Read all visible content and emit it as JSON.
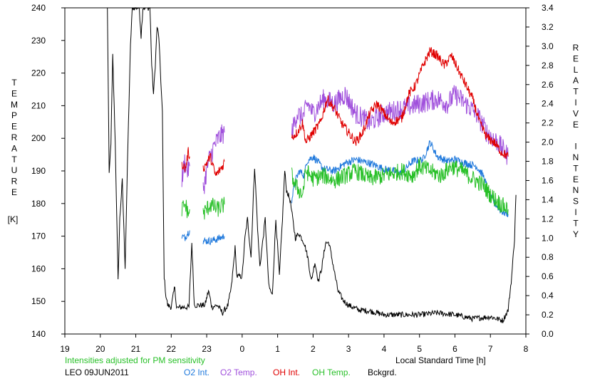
{
  "chart_data": {
    "type": "line",
    "left_axis": {
      "label_letters": [
        "T",
        "E",
        "M",
        "P",
        "E",
        "R",
        "A",
        "T",
        "U",
        "R",
        "E"
      ],
      "unit": "[K]",
      "ticks": [
        140,
        150,
        160,
        170,
        180,
        190,
        200,
        210,
        220,
        230,
        240
      ],
      "ylim": [
        140,
        240
      ]
    },
    "right_axis": {
      "label_letters": [
        "R",
        "E",
        "L",
        "A",
        "T",
        "I",
        "V",
        "E",
        "",
        "I",
        "N",
        "T",
        "E",
        "N",
        "S",
        "I",
        "T",
        "Y"
      ],
      "ticks": [
        "0.0",
        "0.2",
        "0.4",
        "0.6",
        "0.8",
        "1.0",
        "1.2",
        "1.4",
        "1.6",
        "1.8",
        "2.0",
        "2.2",
        "2.4",
        "2.6",
        "2.8",
        "3.0",
        "3.2",
        "3.4"
      ],
      "ylim": [
        0.0,
        3.4
      ]
    },
    "x_axis": {
      "ticks": [
        {
          "x": 19,
          "label": "19"
        },
        {
          "x": 20,
          "label": "20"
        },
        {
          "x": 21,
          "label": "21"
        },
        {
          "x": 22,
          "label": "22"
        },
        {
          "x": 23,
          "label": "23"
        },
        {
          "x": 24,
          "label": "0"
        },
        {
          "x": 25,
          "label": "1"
        },
        {
          "x": 26,
          "label": "2"
        },
        {
          "x": 27,
          "label": "3"
        },
        {
          "x": 28,
          "label": "4"
        },
        {
          "x": 29,
          "label": "5"
        },
        {
          "x": 30,
          "label": "6"
        },
        {
          "x": 31,
          "label": "7"
        },
        {
          "x": 32,
          "label": "8"
        }
      ],
      "xlim": [
        19,
        32
      ],
      "label": "Local Standard Time [h]"
    },
    "note": "Intensities adjusted for PM sensitivity",
    "site": "LEO 09JUN2011",
    "legend": [
      {
        "name": "O2 Int.",
        "color": "#1e78dc"
      },
      {
        "name": "O2 Temp.",
        "color": "#a050dc"
      },
      {
        "name": "OH Int.",
        "color": "#e00000"
      },
      {
        "name": "OH Temp.",
        "color": "#28c028"
      },
      {
        "name": "Bckgrd.",
        "color": "#000000"
      }
    ],
    "series": [
      {
        "name": "Bckgrd.",
        "color": "#000000",
        "axis": "right",
        "noise": 0.03,
        "points": [
          [
            20.2,
            3.4
          ],
          [
            20.25,
            1.65
          ],
          [
            20.3,
            2.0
          ],
          [
            20.35,
            2.9
          ],
          [
            20.42,
            2.0
          ],
          [
            20.5,
            0.55
          ],
          [
            20.55,
            1.2
          ],
          [
            20.62,
            1.6
          ],
          [
            20.7,
            0.7
          ],
          [
            20.78,
            2.0
          ],
          [
            20.85,
            3.0
          ],
          [
            20.9,
            3.4
          ],
          [
            21.1,
            3.4
          ],
          [
            21.15,
            3.1
          ],
          [
            21.2,
            3.4
          ],
          [
            21.4,
            3.4
          ],
          [
            21.45,
            2.8
          ],
          [
            21.5,
            2.5
          ],
          [
            21.55,
            2.8
          ],
          [
            21.6,
            3.2
          ],
          [
            21.65,
            3.1
          ],
          [
            21.75,
            2.3
          ],
          [
            21.8,
            0.6
          ],
          [
            21.85,
            0.4
          ],
          [
            21.9,
            0.3
          ],
          [
            22.0,
            0.28
          ],
          [
            22.1,
            0.5
          ],
          [
            22.15,
            0.27
          ],
          [
            22.3,
            0.28
          ],
          [
            22.5,
            0.28
          ],
          [
            22.58,
            0.95
          ],
          [
            22.65,
            0.3
          ],
          [
            22.8,
            0.3
          ],
          [
            22.95,
            0.3
          ],
          [
            23.05,
            0.45
          ],
          [
            23.15,
            0.28
          ],
          [
            23.3,
            0.3
          ],
          [
            23.45,
            0.22
          ],
          [
            23.6,
            0.3
          ],
          [
            23.7,
            0.5
          ],
          [
            23.8,
            0.9
          ],
          [
            23.85,
            0.6
          ],
          [
            24.0,
            0.6
          ],
          [
            24.08,
            1.0
          ],
          [
            24.15,
            1.2
          ],
          [
            24.25,
            0.8
          ],
          [
            24.35,
            1.75
          ],
          [
            24.45,
            1.0
          ],
          [
            24.5,
            0.7
          ],
          [
            24.65,
            1.2
          ],
          [
            24.75,
            0.5
          ],
          [
            24.85,
            0.4
          ],
          [
            24.95,
            1.2
          ],
          [
            25.05,
            0.6
          ],
          [
            25.15,
            1.3
          ],
          [
            25.2,
            1.7
          ],
          [
            25.25,
            1.5
          ],
          [
            25.35,
            1.4
          ],
          [
            25.5,
            1.0
          ],
          [
            25.6,
            1.05
          ],
          [
            25.75,
            0.95
          ],
          [
            25.85,
            0.8
          ],
          [
            25.95,
            0.55
          ],
          [
            26.05,
            0.75
          ],
          [
            26.15,
            0.55
          ],
          [
            26.25,
            0.7
          ],
          [
            26.35,
            0.95
          ],
          [
            26.45,
            0.95
          ],
          [
            26.55,
            0.75
          ],
          [
            26.7,
            0.45
          ],
          [
            26.85,
            0.35
          ],
          [
            27.0,
            0.3
          ],
          [
            27.3,
            0.25
          ],
          [
            27.6,
            0.24
          ],
          [
            28.0,
            0.2
          ],
          [
            28.5,
            0.2
          ],
          [
            29.0,
            0.2
          ],
          [
            29.5,
            0.22
          ],
          [
            30.0,
            0.2
          ],
          [
            30.5,
            0.16
          ],
          [
            31.0,
            0.18
          ],
          [
            31.35,
            0.14
          ],
          [
            31.5,
            0.25
          ],
          [
            31.6,
            0.6
          ],
          [
            31.68,
            1.0
          ],
          [
            31.72,
            1.45
          ]
        ]
      },
      {
        "name": "O2 Int.",
        "color": "#1e78dc",
        "axis": "right",
        "noise": 0.04,
        "segments": [
          [
            [
              22.3,
              1.02
            ],
            [
              22.38,
              1.0
            ],
            [
              22.46,
              1.05
            ],
            [
              22.52,
              1.08
            ]
          ],
          [
            [
              22.9,
              0.97
            ],
            [
              23.1,
              0.97
            ],
            [
              23.3,
              0.99
            ],
            [
              23.5,
              1.02
            ]
          ],
          [
            [
              25.4,
              1.4
            ],
            [
              25.5,
              1.6
            ],
            [
              25.62,
              1.7
            ],
            [
              25.75,
              1.65
            ],
            [
              25.82,
              1.8
            ],
            [
              26.0,
              1.85
            ],
            [
              26.3,
              1.72
            ],
            [
              26.6,
              1.7
            ],
            [
              26.9,
              1.78
            ],
            [
              27.2,
              1.82
            ],
            [
              27.6,
              1.78
            ],
            [
              28.0,
              1.72
            ],
            [
              28.5,
              1.68
            ],
            [
              28.8,
              1.8
            ],
            [
              29.1,
              1.82
            ],
            [
              29.3,
              2.0
            ],
            [
              29.5,
              1.85
            ],
            [
              29.8,
              1.8
            ],
            [
              30.0,
              1.82
            ],
            [
              30.3,
              1.78
            ],
            [
              30.6,
              1.75
            ],
            [
              30.8,
              1.65
            ],
            [
              31.0,
              1.42
            ],
            [
              31.3,
              1.28
            ],
            [
              31.5,
              1.25
            ]
          ]
        ]
      },
      {
        "name": "O2 Temp.",
        "color": "#a050dc",
        "axis": "right",
        "noise": 0.11,
        "segments": [
          [
            [
              22.3,
              1.6
            ],
            [
              22.38,
              1.8
            ],
            [
              22.46,
              1.7
            ],
            [
              22.52,
              1.75
            ]
          ],
          [
            [
              22.9,
              1.5
            ],
            [
              23.05,
              1.8
            ],
            [
              23.2,
              1.95
            ],
            [
              23.35,
              2.05
            ],
            [
              23.5,
              2.1
            ]
          ],
          [
            [
              25.4,
              2.1
            ],
            [
              25.55,
              2.3
            ],
            [
              25.7,
              2.25
            ],
            [
              25.85,
              2.4
            ],
            [
              26.0,
              2.3
            ],
            [
              26.3,
              2.45
            ],
            [
              26.6,
              2.4
            ],
            [
              26.9,
              2.5
            ],
            [
              27.2,
              2.3
            ],
            [
              27.6,
              2.2
            ],
            [
              28.0,
              2.3
            ],
            [
              28.5,
              2.35
            ],
            [
              29.0,
              2.4
            ],
            [
              29.5,
              2.45
            ],
            [
              29.8,
              2.4
            ],
            [
              30.0,
              2.5
            ],
            [
              30.3,
              2.4
            ],
            [
              30.6,
              2.3
            ],
            [
              30.9,
              2.1
            ],
            [
              31.2,
              2.0
            ],
            [
              31.5,
              1.85
            ]
          ]
        ]
      },
      {
        "name": "OH Int.",
        "color": "#e00000",
        "axis": "right",
        "noise": 0.05,
        "segments": [
          [
            [
              22.3,
              1.78
            ],
            [
              22.4,
              1.72
            ],
            [
              22.48,
              1.9
            ],
            [
              22.52,
              1.85
            ]
          ],
          [
            [
              22.9,
              1.72
            ],
            [
              23.1,
              1.85
            ],
            [
              23.25,
              1.65
            ],
            [
              23.45,
              1.75
            ],
            [
              23.5,
              1.8
            ]
          ],
          [
            [
              25.4,
              2.05
            ],
            [
              25.55,
              2.1
            ],
            [
              25.7,
              2.2
            ],
            [
              25.8,
              2.0
            ],
            [
              26.0,
              2.1
            ],
            [
              26.2,
              2.2
            ],
            [
              26.4,
              2.45
            ],
            [
              26.6,
              2.35
            ],
            [
              26.8,
              2.2
            ],
            [
              27.0,
              2.1
            ],
            [
              27.2,
              2.0
            ],
            [
              27.4,
              2.1
            ],
            [
              27.6,
              2.3
            ],
            [
              27.8,
              2.4
            ],
            [
              28.0,
              2.3
            ],
            [
              28.2,
              2.2
            ],
            [
              28.5,
              2.25
            ],
            [
              28.7,
              2.5
            ],
            [
              28.9,
              2.6
            ],
            [
              29.1,
              2.8
            ],
            [
              29.3,
              2.95
            ],
            [
              29.5,
              2.9
            ],
            [
              29.7,
              2.8
            ],
            [
              29.9,
              2.9
            ],
            [
              30.1,
              2.75
            ],
            [
              30.3,
              2.6
            ],
            [
              30.5,
              2.45
            ],
            [
              30.7,
              2.2
            ],
            [
              30.9,
              2.05
            ],
            [
              31.1,
              2.0
            ],
            [
              31.3,
              1.9
            ],
            [
              31.5,
              1.85
            ]
          ]
        ]
      },
      {
        "name": "OH Temp.",
        "color": "#28c028",
        "axis": "right",
        "noise": 0.09,
        "segments": [
          [
            [
              22.3,
              1.3
            ],
            [
              22.4,
              1.35
            ],
            [
              22.48,
              1.25
            ],
            [
              22.52,
              1.3
            ]
          ],
          [
            [
              22.9,
              1.25
            ],
            [
              23.1,
              1.35
            ],
            [
              23.3,
              1.3
            ],
            [
              23.5,
              1.35
            ]
          ],
          [
            [
              25.4,
              1.65
            ],
            [
              25.5,
              1.55
            ],
            [
              25.6,
              1.5
            ],
            [
              25.7,
              1.45
            ],
            [
              25.8,
              1.7
            ],
            [
              26.0,
              1.62
            ],
            [
              26.3,
              1.65
            ],
            [
              26.6,
              1.6
            ],
            [
              26.9,
              1.65
            ],
            [
              27.2,
              1.7
            ],
            [
              27.6,
              1.62
            ],
            [
              28.0,
              1.65
            ],
            [
              28.5,
              1.7
            ],
            [
              28.8,
              1.65
            ],
            [
              29.0,
              1.75
            ],
            [
              29.3,
              1.7
            ],
            [
              29.6,
              1.65
            ],
            [
              29.9,
              1.75
            ],
            [
              30.2,
              1.7
            ],
            [
              30.5,
              1.62
            ],
            [
              30.8,
              1.55
            ],
            [
              31.0,
              1.45
            ],
            [
              31.3,
              1.35
            ],
            [
              31.5,
              1.3
            ]
          ]
        ]
      }
    ]
  }
}
